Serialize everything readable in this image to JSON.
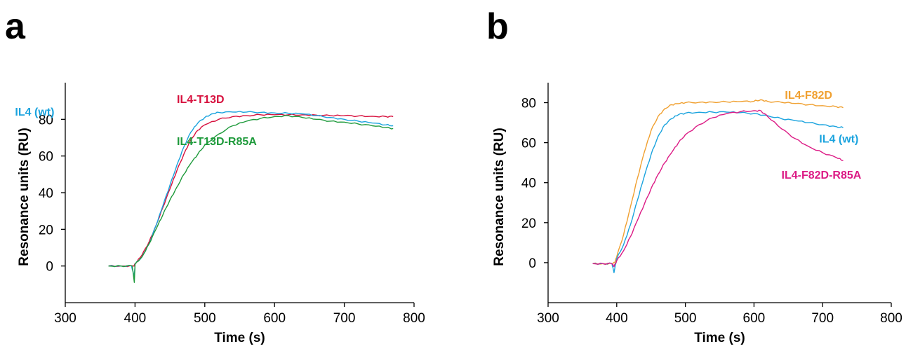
{
  "panels": [
    {
      "panel_letter": "a",
      "chart_data": {
        "type": "line",
        "xlabel": "Time (s)",
        "ylabel": "Resonance units (RU)",
        "xlim": [
          300,
          800
        ],
        "ylim": [
          -20,
          100
        ],
        "xticks": [
          300,
          400,
          500,
          600,
          700,
          800
        ],
        "yticks": [
          0,
          20,
          40,
          60,
          80
        ],
        "legend": "inline labels",
        "grid": false,
        "series": [
          {
            "name": "IL4-T13D",
            "color": "#d7113e",
            "label_at": [
              460,
              89
            ],
            "label_anchor": "start",
            "x": [
              362,
              380,
              398,
              400,
              410,
              420,
              430,
              440,
              450,
              460,
              470,
              480,
              490,
              500,
              520,
              540,
              560,
              580,
              600,
              620,
              640,
              660,
              680,
              700,
              720,
              740,
              760,
              770
            ],
            "y": [
              0,
              0,
              0,
              1,
              6,
              13,
              22,
              32,
              42,
              52,
              61,
              69,
              74,
              77,
              80,
              81.5,
              82,
              82.5,
              82.5,
              82.5,
              82.5,
              82.3,
              82,
              82,
              81.8,
              81.7,
              81.5,
              81.5
            ]
          },
          {
            "name": "IL4 (wt)",
            "color": "#1aa3de",
            "label_at": [
              228,
              82
            ],
            "label_anchor": "start",
            "x": [
              362,
              380,
              395,
              399,
              400,
              410,
              420,
              430,
              440,
              450,
              460,
              470,
              480,
              490,
              500,
              510,
              520,
              540,
              560,
              580,
              600,
              620,
              640,
              660,
              680,
              700,
              720,
              740,
              760,
              770
            ],
            "y": [
              0,
              0,
              0,
              -6,
              1,
              5,
              12,
              22,
              33,
              44,
              55,
              65,
              73,
              78,
              81,
              83,
              83.8,
              84,
              84,
              83.8,
              83.5,
              83.3,
              83,
              82,
              81,
              80,
              79,
              78,
              77,
              76.5
            ]
          },
          {
            "name": "IL4-T13D-R85A",
            "color": "#1e9a3b",
            "label_at": [
              460,
              66
            ],
            "label_anchor": "start",
            "x": [
              362,
              380,
              396,
              399,
              400,
              410,
              420,
              430,
              440,
              450,
              460,
              470,
              480,
              490,
              500,
              520,
              540,
              560,
              580,
              600,
              620,
              640,
              660,
              680,
              700,
              720,
              740,
              760,
              770
            ],
            "y": [
              0,
              0,
              0,
              -9,
              1,
              5,
              12,
              20,
              28,
              36,
              43,
              50,
              56,
              61,
              66,
              72,
              76.5,
              79,
              80.5,
              81.5,
              82,
              81,
              80,
              79,
              78.5,
              77.5,
              76.5,
              75.5,
              75
            ]
          }
        ]
      }
    },
    {
      "panel_letter": "b",
      "chart_data": {
        "type": "line",
        "xlabel": "Time (s)",
        "ylabel": "Resonance units (RU)",
        "xlim": [
          300,
          800
        ],
        "ylim": [
          -20,
          90
        ],
        "xticks": [
          300,
          400,
          500,
          600,
          700,
          800
        ],
        "yticks": [
          0,
          20,
          40,
          60,
          80
        ],
        "legend": "inline labels",
        "grid": false,
        "series": [
          {
            "name": "IL4-F82D",
            "color": "#f0a030",
            "label_at": [
              645,
              82
            ],
            "label_anchor": "start",
            "x": [
              365,
              380,
              393,
              397,
              400,
              410,
              420,
              430,
              440,
              450,
              460,
              470,
              480,
              490,
              500,
              520,
              540,
              560,
              580,
              600,
              610,
              620,
              640,
              660,
              680,
              700,
              720,
              730
            ],
            "y": [
              -0.5,
              -0.5,
              -0.5,
              0,
              3,
              14,
              28,
              42,
              55,
              66,
              73,
              77,
              79,
              79.5,
              80,
              80.2,
              80.3,
              80.4,
              80.5,
              80.7,
              81.5,
              80.6,
              80.2,
              79.6,
              79,
              78.5,
              78,
              77.5
            ]
          },
          {
            "name": "IL4 (wt)",
            "color": "#1aa3de",
            "label_at": [
              695,
              60
            ],
            "label_anchor": "start",
            "x": [
              365,
              380,
              393,
              396,
              400,
              410,
              420,
              430,
              440,
              450,
              460,
              470,
              480,
              490,
              500,
              520,
              540,
              560,
              580,
              600,
              620,
              640,
              660,
              680,
              700,
              720,
              730
            ],
            "y": [
              -0.5,
              -0.5,
              -0.5,
              -5,
              2,
              9,
              19,
              31,
              43,
              54,
              63,
              69,
              72,
              74,
              74.8,
              75.2,
              75.3,
              75.3,
              75,
              74.5,
              73.5,
              72,
              71,
              70,
              69,
              68,
              67.5
            ]
          },
          {
            "name": "IL4-F82D-R85A",
            "color": "#dc1b85",
            "label_at": [
              640,
              42
            ],
            "label_anchor": "start",
            "x": [
              365,
              380,
              393,
              396,
              400,
              410,
              420,
              430,
              440,
              450,
              460,
              470,
              480,
              490,
              500,
              520,
              540,
              560,
              580,
              600,
              610,
              620,
              640,
              660,
              680,
              700,
              720,
              730
            ],
            "y": [
              -0.5,
              -0.5,
              -0.5,
              -2,
              1,
              6,
              13,
              21,
              29,
              37,
              44,
              50,
              55,
              60,
              64,
              69,
              72.5,
              74.5,
              75.5,
              76,
              76,
              73,
              67,
              62,
              58,
              55,
              52.5,
              51
            ]
          }
        ]
      }
    }
  ]
}
